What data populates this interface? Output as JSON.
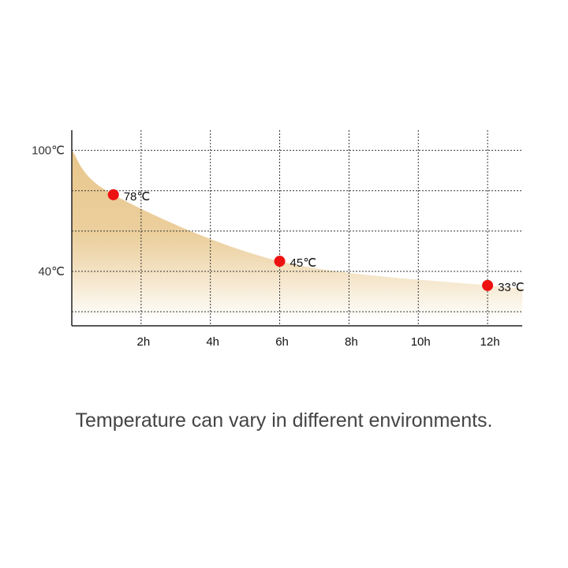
{
  "chart_data": {
    "type": "area",
    "x_ticks": [
      "2h",
      "4h",
      "6h",
      "8h",
      "10h",
      "12h"
    ],
    "y_ticks": [
      "100℃",
      "40℃"
    ],
    "points": [
      {
        "x": 1.2,
        "y": 78,
        "label": "78℃"
      },
      {
        "x": 6,
        "y": 45,
        "label": "45℃"
      },
      {
        "x": 12,
        "y": 33,
        "label": "33℃"
      }
    ],
    "curve_start": {
      "x": 0,
      "y": 100
    },
    "curve_end": {
      "x": 13,
      "y": 32
    },
    "xlim": [
      0,
      13
    ],
    "ylim": [
      13,
      110
    ],
    "grid": true,
    "colors": {
      "fill_top": "#e8c78c",
      "fill_bottom": "#ffffff",
      "marker": "#ee1111"
    }
  },
  "caption": "Temperature can vary in different environments."
}
